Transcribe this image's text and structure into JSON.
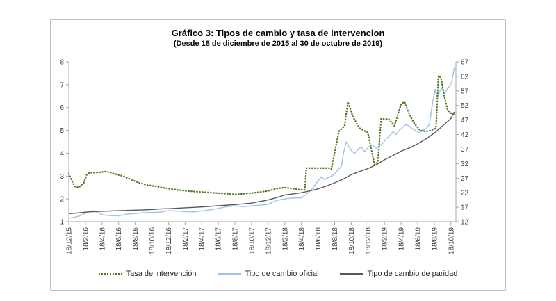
{
  "chart_data": {
    "type": "line",
    "title": "Gráfico 3: Tipos de cambio y tasa de intervencion",
    "subtitle": "(Desde 18 de diciembre de 2015 al 30 de octubre de 2019)",
    "x_unit": "months since 18/12/2015",
    "x_range": [
      0,
      46.6
    ],
    "x_tick_positions": [
      0,
      2,
      4,
      6,
      8,
      10,
      12,
      14,
      16,
      18,
      20,
      22,
      24,
      26,
      28,
      30,
      32,
      34,
      36,
      38,
      40,
      42,
      44,
      46
    ],
    "x_tick_labels": [
      "18/12/15",
      "18/2/16",
      "18/4/16",
      "18/6/16",
      "18/8/16",
      "18/10/16",
      "18/12/16",
      "18/2/17",
      "18/4/17",
      "18/6/17",
      "18/8/17",
      "18/10/17",
      "18/12/17",
      "18/2/18",
      "18/4/18",
      "18/6/18",
      "18/8/18",
      "18/10/18",
      "18/12/18",
      "18/2/19",
      "18/4/19",
      "18/6/19",
      "18/8/19",
      "18/10/19"
    ],
    "left_axis": {
      "range": [
        1,
        8
      ],
      "ticks": [
        1,
        2,
        3,
        4,
        5,
        6,
        7,
        8
      ]
    },
    "right_axis": {
      "range": [
        12,
        67
      ],
      "ticks": [
        12,
        17,
        22,
        27,
        32,
        37,
        42,
        47,
        52,
        57,
        62,
        67
      ]
    },
    "grid": "off",
    "legend_position": "bottom",
    "colors": {
      "axis_line": "#a6a6a6",
      "axis_text": "#404040"
    },
    "series": [
      {
        "name": "Tasa de intervención",
        "axis": "left",
        "color": "#4e7a27",
        "style": "dotted",
        "x": [
          0,
          0.7,
          1.2,
          1.8,
          2.2,
          2.6,
          3.5,
          4.5,
          5.5,
          6.5,
          7.5,
          8.5,
          9.5,
          10.5,
          12,
          14,
          16,
          18,
          20,
          22,
          23,
          24,
          25,
          26,
          27,
          28,
          28.4,
          28.6,
          31.4,
          31.6,
          32.5,
          33.2,
          33.6,
          34.2,
          35,
          36,
          36.4,
          36.8,
          37.2,
          37.6,
          38.5,
          39.2,
          40,
          40.4,
          41,
          41.6,
          42.3,
          43,
          43.6,
          44.2,
          44.5,
          44.8,
          45.2,
          45.6,
          46,
          46.4
        ],
        "y": [
          3.1,
          2.55,
          2.5,
          2.7,
          3.1,
          3.15,
          3.15,
          3.2,
          3.1,
          3.0,
          2.85,
          2.7,
          2.6,
          2.55,
          2.45,
          2.35,
          2.3,
          2.25,
          2.2,
          2.25,
          2.3,
          2.35,
          2.45,
          2.5,
          2.45,
          2.4,
          2.4,
          3.35,
          3.35,
          3.3,
          4.95,
          5.2,
          6.25,
          5.6,
          5.1,
          4.9,
          4.2,
          3.5,
          3.6,
          5.5,
          5.5,
          5.2,
          6.15,
          6.25,
          5.7,
          5.3,
          5.0,
          4.95,
          5.0,
          5.1,
          7.4,
          7.3,
          6.5,
          5.9,
          5.75,
          5.7
        ]
      },
      {
        "name": "Tipo de cambio oficial",
        "axis": "right",
        "color": "#9dc3e6",
        "style": "solid",
        "x": [
          0,
          0.8,
          1.5,
          2.2,
          3,
          3.6,
          4.2,
          5,
          6,
          7,
          8,
          9,
          10,
          11,
          12,
          13,
          14,
          15,
          16,
          17,
          18,
          19,
          20,
          21,
          22,
          23,
          24,
          25,
          26,
          27,
          28,
          28.7,
          29.2,
          29.6,
          30,
          30.4,
          30.8,
          31.3,
          31.8,
          32.3,
          32.8,
          33.1,
          33.4,
          33.7,
          34,
          34.4,
          34.8,
          35.2,
          35.6,
          36,
          36.5,
          37,
          37.4,
          37.8,
          38.2,
          38.6,
          39,
          39.4,
          39.8,
          40.2,
          40.6,
          41,
          41.4,
          41.8,
          42.2,
          42.6,
          43,
          43.4,
          43.8,
          44.1,
          44.3,
          44.6,
          44.9,
          45.2,
          45.5,
          45.8,
          46.1,
          46.4
        ],
        "y": [
          13.2,
          13.6,
          14.2,
          15.3,
          15.8,
          15.0,
          14.3,
          14.1,
          14.0,
          14.6,
          14.8,
          15.1,
          15.2,
          15.3,
          15.8,
          15.7,
          15.5,
          15.4,
          15.7,
          16.1,
          16.6,
          17.2,
          17.5,
          17.2,
          17.5,
          17.7,
          18.0,
          19.3,
          19.9,
          20.2,
          20.2,
          21.8,
          23.0,
          24.5,
          26.0,
          27.5,
          26.5,
          27.3,
          28.0,
          29.5,
          31.0,
          36.0,
          39.5,
          38.0,
          36.5,
          35.5,
          36.8,
          37.8,
          36.0,
          37.5,
          38.5,
          37.3,
          38.0,
          39.0,
          40.5,
          41.5,
          43.0,
          42.0,
          43.5,
          44.5,
          45.5,
          44.8,
          44.0,
          43.3,
          42.6,
          43.5,
          44.0,
          45.5,
          53.0,
          57.5,
          55.0,
          56.5,
          58.0,
          56.0,
          57.5,
          58.5,
          60.0,
          65.0
        ]
      },
      {
        "name": "Tipo de cambio de paridad",
        "axis": "right",
        "color": "#595959",
        "style": "solid",
        "x": [
          0,
          1,
          2,
          3,
          4,
          5,
          6,
          7,
          8,
          9,
          10,
          11,
          12,
          14,
          16,
          18,
          20,
          22,
          24,
          25,
          26,
          27,
          28,
          29,
          30,
          31,
          32,
          33,
          34,
          35,
          36,
          37,
          38,
          39,
          40,
          41,
          42,
          43,
          44,
          45,
          46,
          46.4
        ],
        "y": [
          14.8,
          15.0,
          15.3,
          15.5,
          15.6,
          15.7,
          15.8,
          15.9,
          16.0,
          16.1,
          16.2,
          16.4,
          16.5,
          16.8,
          17.1,
          17.5,
          17.9,
          18.4,
          19.5,
          20.3,
          21.2,
          21.6,
          22.0,
          22.6,
          23.3,
          24.3,
          25.4,
          26.6,
          28.2,
          29.3,
          30.3,
          31.6,
          33.3,
          34.8,
          36.3,
          37.4,
          38.8,
          40.5,
          42.5,
          45.0,
          47.5,
          49.8
        ]
      }
    ]
  }
}
